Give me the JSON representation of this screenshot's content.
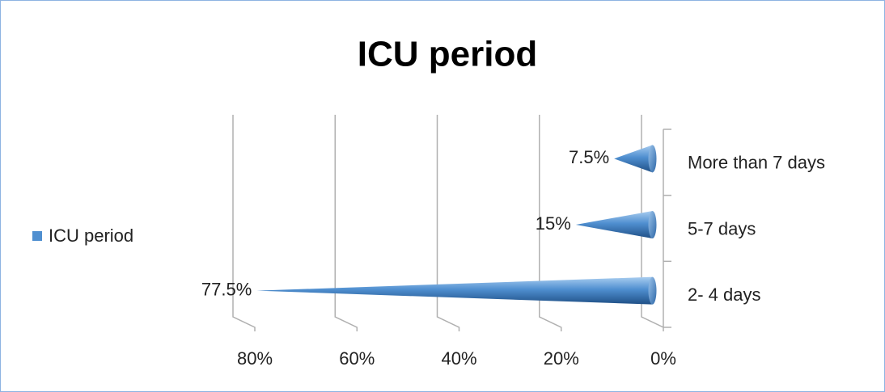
{
  "chart_data": {
    "type": "cone-bar-horizontal",
    "title": "ICU period",
    "categories": [
      "2- 4 days",
      "5-7 days",
      "More than 7 days"
    ],
    "series": [
      {
        "name": "ICU period",
        "color": "#4f8fd0",
        "values": [
          77.5,
          15,
          7.5
        ],
        "value_labels": [
          "77.5%",
          "15%",
          "7.5%"
        ]
      }
    ],
    "xlim": [
      0,
      80
    ],
    "xticks": [
      {
        "value": 0,
        "label": "0%"
      },
      {
        "value": 20,
        "label": "20%"
      },
      {
        "value": 40,
        "label": "40%"
      },
      {
        "value": 60,
        "label": "60%"
      },
      {
        "value": 80,
        "label": "80%"
      }
    ],
    "reverse_x": true,
    "grid": true,
    "legend": "left"
  }
}
